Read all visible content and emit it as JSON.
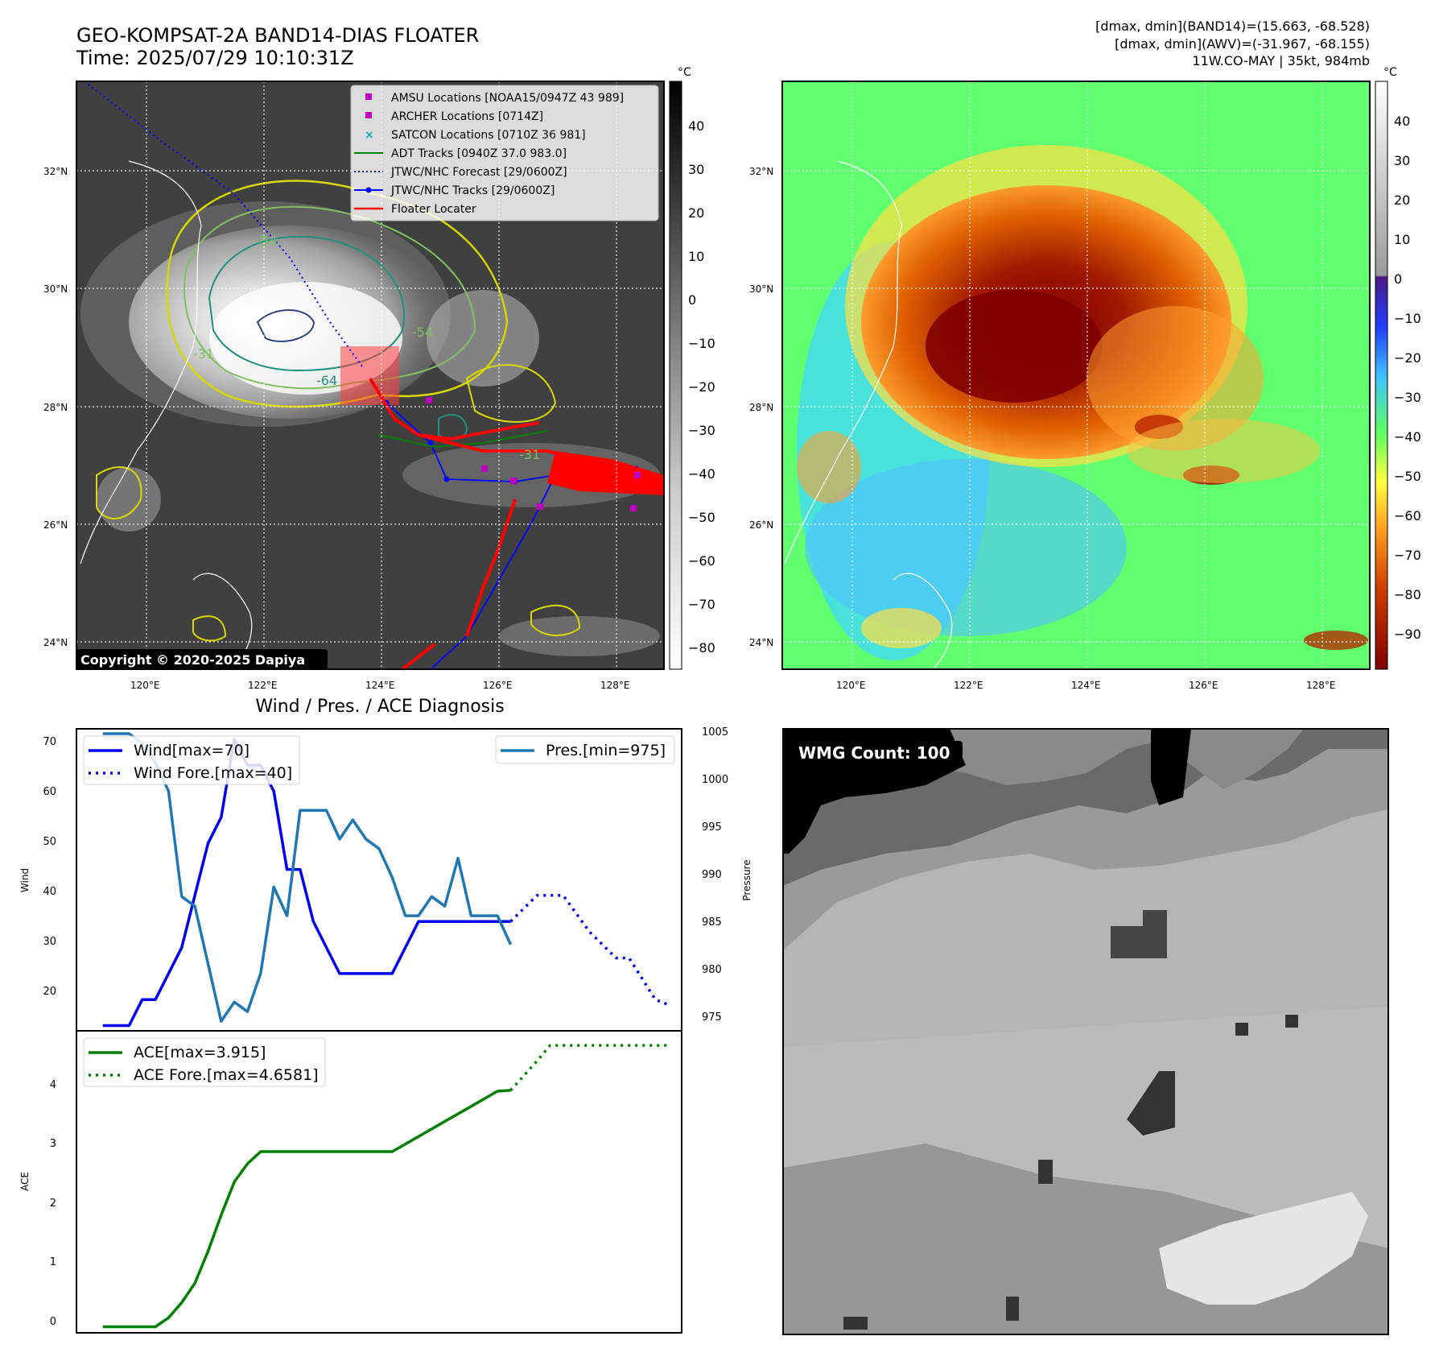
{
  "header": {
    "title_line1": "GEO-KOMPSAT-2A BAND14-DIAS FLOATER",
    "title_line2": "Time: 2025/07/29 10:10:31Z",
    "info_line1": "[dmax, dmin](BAND14)=(15.663, -68.528)",
    "info_line2": "[dmax, dmin](AWV)=(-31.967, -68.155)",
    "info_line3": "11W.CO-MAY | 35kt, 984mb"
  },
  "map": {
    "lat_labels": [
      "32°N",
      "30°N",
      "28°N",
      "26°N",
      "24°N"
    ],
    "lon_labels": [
      "120°E",
      "122°E",
      "124°E",
      "126°E",
      "128°E"
    ],
    "copyright": "Copyright © 2020-2025 Dapiya",
    "colorbar_unit": "°C",
    "gray_colorbar_ticks": [
      "40",
      "30",
      "20",
      "10",
      "0",
      "−10",
      "−20",
      "−30",
      "−40",
      "−50",
      "−60",
      "−70",
      "−80"
    ],
    "color_colorbar_ticks": [
      "40",
      "30",
      "20",
      "10",
      "0",
      "−10",
      "−20",
      "−30",
      "−40",
      "−50",
      "−60",
      "−70",
      "−80",
      "−90"
    ],
    "contour_labels": [
      "-54",
      "-54",
      "-31",
      "-64",
      "-31"
    ],
    "legend": [
      {
        "label": "AMSU Locations [NOAA15/0947Z 43 989]",
        "color": "#c000c0",
        "marker": "square"
      },
      {
        "label": "ARCHER Locations [0714Z]",
        "color": "#c000c0",
        "marker": "square"
      },
      {
        "label": "SATCON Locations [0710Z 36 981]",
        "color": "#10b0b0",
        "marker": "x"
      },
      {
        "label": "ADT Tracks [0940Z 37.0 983.0]",
        "color": "#008000",
        "marker": "line"
      },
      {
        "label": "JTWC/NHC Forecast [29/0600Z]",
        "color": "#0000ff",
        "marker": "dotted"
      },
      {
        "label": "JTWC/NHC Tracks [29/0600Z]",
        "color": "#0000ff",
        "marker": "line-dot"
      },
      {
        "label": "Floater Locater",
        "color": "#ff0000",
        "marker": "line"
      }
    ]
  },
  "wmg": {
    "label": "WMG Count: 100"
  },
  "chart_data": [
    {
      "type": "line",
      "title": "Wind / Pres. / ACE Diagnosis",
      "ylabel": "Wind",
      "y2label": "Pressure",
      "ylim": [
        14,
        72
      ],
      "y2lim": [
        974,
        1005.5
      ],
      "xlim": [
        0,
        46
      ],
      "yticks": [
        "20",
        "30",
        "40",
        "50",
        "60",
        "70"
      ],
      "y2ticks": [
        "975",
        "980",
        "985",
        "990",
        "995",
        "1000",
        "1005"
      ],
      "series": [
        {
          "name": "Wind[max=70]",
          "color": "#0000ee",
          "style": "solid",
          "x": [
            2,
            4,
            5,
            6,
            7,
            8,
            9,
            10,
            11,
            12,
            13,
            14,
            15,
            16,
            17,
            18,
            19,
            20,
            21,
            22,
            23,
            24,
            25,
            26,
            27,
            28,
            29,
            30,
            31,
            32,
            33
          ],
          "values": [
            15,
            15,
            20,
            20,
            25,
            30,
            40,
            50,
            55,
            70,
            65,
            65,
            60,
            45,
            45,
            35,
            30,
            25,
            25,
            25,
            25,
            25,
            30,
            35,
            35,
            35,
            35,
            35,
            35,
            35,
            35
          ]
        },
        {
          "name": "Wind Fore.[max=40]",
          "color": "#0000ee",
          "style": "dotted",
          "x": [
            33,
            35,
            37,
            39,
            41,
            42,
            44,
            45
          ],
          "values": [
            35,
            40,
            40,
            33,
            28,
            28,
            20,
            19
          ]
        },
        {
          "name": "Pres.[min=975]",
          "color": "#1f77b4",
          "style": "solid",
          "axis": "right",
          "x": [
            2,
            3,
            4,
            5,
            6,
            7,
            8,
            9,
            10,
            11,
            12,
            13,
            14,
            15,
            16,
            17,
            18,
            19,
            20,
            21,
            22,
            23,
            24,
            25,
            26,
            27,
            28,
            29,
            30,
            31,
            32,
            33
          ],
          "values": [
            1005,
            1005,
            1005,
            1004,
            1002,
            999,
            988,
            987,
            981,
            975,
            977,
            976,
            980,
            989,
            986,
            997,
            997,
            997,
            994,
            996,
            994,
            993,
            990,
            986,
            986,
            988,
            987,
            992,
            986,
            986,
            986,
            983
          ]
        }
      ]
    },
    {
      "type": "line",
      "ylabel": "ACE",
      "ylim": [
        -0.1,
        4.9
      ],
      "xlim": [
        0,
        46
      ],
      "yticks": [
        "0",
        "1",
        "2",
        "3",
        "4"
      ],
      "series": [
        {
          "name": "ACE[max=3.915]",
          "color": "#008000",
          "style": "solid",
          "x": [
            2,
            6,
            7,
            8,
            9,
            10,
            11,
            12,
            13,
            14,
            15,
            16,
            17,
            20,
            24,
            26,
            28,
            30,
            32,
            33
          ],
          "values": [
            0,
            0,
            0.15,
            0.4,
            0.72,
            1.25,
            1.85,
            2.4,
            2.7,
            2.9,
            2.9,
            2.9,
            2.9,
            2.9,
            2.9,
            3.15,
            3.4,
            3.65,
            3.9,
            3.915
          ]
        },
        {
          "name": "ACE Fore.[max=4.6581]",
          "color": "#008000",
          "style": "dotted",
          "x": [
            33,
            35,
            36,
            38,
            40,
            42,
            45
          ],
          "values": [
            3.915,
            4.4,
            4.6581,
            4.6581,
            4.6581,
            4.6581,
            4.6581
          ]
        }
      ]
    }
  ]
}
